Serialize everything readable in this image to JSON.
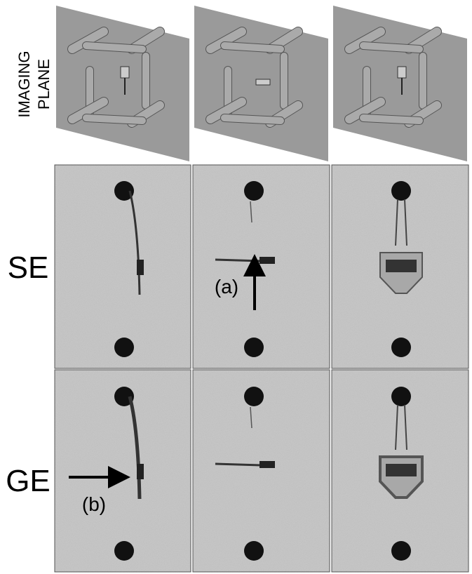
{
  "top_label": {
    "lines": [
      "IMAGING",
      "PLANE"
    ]
  },
  "rows": [
    {
      "label": "SE"
    },
    {
      "label": "GE"
    }
  ],
  "annotations": [
    {
      "label": "(a)"
    },
    {
      "label": "(b)"
    }
  ]
}
